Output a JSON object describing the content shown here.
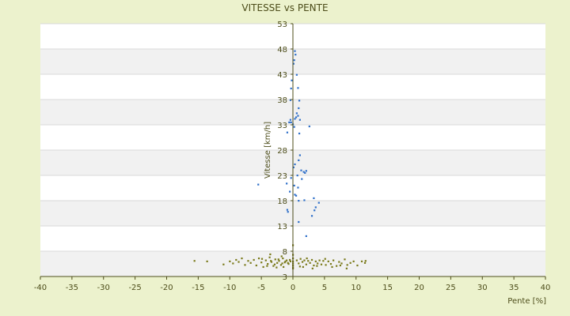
{
  "colors": {
    "background": "#ecf2cd",
    "plot_band_light": "#ffffff",
    "plot_band_dark": "#f1f1f1",
    "grid": "#d9d9d9",
    "axis": "#4d4d1a",
    "text": "#4d4d1a",
    "series_blue": "#2e6fc9",
    "series_olive": "#7a7a1a"
  },
  "chart_data": {
    "type": "scatter",
    "title": "VITESSE vs PENTE",
    "xlabel": "Pente [%]",
    "ylabel": "Vitesse [km/h]",
    "xlim": [
      -40,
      40
    ],
    "ylim": [
      3,
      53
    ],
    "x_ticks": [
      -40,
      -35,
      -30,
      -25,
      -20,
      -15,
      -10,
      -5,
      0,
      5,
      10,
      15,
      20,
      25,
      30,
      35,
      40
    ],
    "y_ticks": [
      3,
      8,
      13,
      18,
      23,
      28,
      33,
      38,
      43,
      48,
      53
    ],
    "grid": true,
    "legend": "none",
    "series": [
      {
        "color": "#2e6fc9",
        "points": [
          [
            0.3,
            47.6
          ],
          [
            0.4,
            46.9
          ],
          [
            0.2,
            45.8
          ],
          [
            0.1,
            45.1
          ],
          [
            0.6,
            42.9
          ],
          [
            -0.2,
            41.8
          ],
          [
            -0.3,
            40.2
          ],
          [
            0.8,
            40.3
          ],
          [
            1.0,
            37.8
          ],
          [
            -0.4,
            37.9
          ],
          [
            0.9,
            36.3
          ],
          [
            0.6,
            35.3
          ],
          [
            0.8,
            34.8
          ],
          [
            0.5,
            34.5
          ],
          [
            0.3,
            34.2
          ],
          [
            1.1,
            34.0
          ],
          [
            -0.4,
            34.0
          ],
          [
            -0.6,
            33.5
          ],
          [
            -0.3,
            33.5
          ],
          [
            0.2,
            32.6
          ],
          [
            0.0,
            33.1
          ],
          [
            2.6,
            32.7
          ],
          [
            -0.9,
            31.5
          ],
          [
            1.0,
            31.3
          ],
          [
            1.1,
            27.0
          ],
          [
            0.9,
            26.0
          ],
          [
            0.3,
            25.2
          ],
          [
            0.1,
            24.6
          ],
          [
            1.3,
            24.0
          ],
          [
            1.7,
            23.7
          ],
          [
            1.9,
            23.5
          ],
          [
            2.1,
            23.9
          ],
          [
            0.7,
            23.0
          ],
          [
            -0.3,
            22.5
          ],
          [
            1.4,
            22.3
          ],
          [
            0.2,
            21.0
          ],
          [
            -5.5,
            21.2
          ],
          [
            -1.0,
            21.4
          ],
          [
            0.8,
            20.6
          ],
          [
            -0.5,
            19.8
          ],
          [
            0.3,
            19.2
          ],
          [
            0.5,
            19.0
          ],
          [
            0.9,
            18.0
          ],
          [
            1.8,
            18.1
          ],
          [
            3.3,
            18.5
          ],
          [
            4.1,
            17.6
          ],
          [
            3.6,
            16.7
          ],
          [
            3.4,
            16.1
          ],
          [
            -0.9,
            16.2
          ],
          [
            -0.8,
            15.8
          ],
          [
            3.0,
            15.0
          ],
          [
            0.9,
            13.8
          ],
          [
            2.1,
            11.0
          ]
        ]
      },
      {
        "color": "#7a7a1a",
        "points": [
          [
            -15.6,
            6.1
          ],
          [
            -13.6,
            6.0
          ],
          [
            -11.0,
            5.4
          ],
          [
            -10.0,
            6.0
          ],
          [
            -9.5,
            5.6
          ],
          [
            -9.0,
            6.3
          ],
          [
            -8.6,
            5.9
          ],
          [
            -8.1,
            6.6
          ],
          [
            -7.6,
            5.3
          ],
          [
            -7.1,
            6.1
          ],
          [
            -6.7,
            5.7
          ],
          [
            -6.2,
            6.3
          ],
          [
            -5.8,
            5.2
          ],
          [
            -5.4,
            6.6
          ],
          [
            -5.0,
            5.8
          ],
          [
            -4.7,
            4.9
          ],
          [
            -4.3,
            6.2
          ],
          [
            -4.0,
            5.5
          ],
          [
            -3.7,
            6.8
          ],
          [
            -3.4,
            5.9
          ],
          [
            -3.1,
            5.1
          ],
          [
            -2.8,
            6.4
          ],
          [
            -2.5,
            5.7
          ],
          [
            -2.2,
            6.1
          ],
          [
            -1.9,
            5.3
          ],
          [
            -1.6,
            6.6
          ],
          [
            -1.3,
            5.8
          ],
          [
            -1.0,
            6.2
          ],
          [
            -0.7,
            5.5
          ],
          [
            -0.4,
            6.0
          ],
          [
            -4.9,
            6.5
          ],
          [
            -4.1,
            5.1
          ],
          [
            -3.5,
            6.1
          ],
          [
            -2.9,
            5.4
          ],
          [
            -2.3,
            6.4
          ],
          [
            -1.7,
            5.6
          ],
          [
            -1.2,
            6.0
          ],
          [
            -0.8,
            5.7
          ],
          [
            -0.5,
            6.3
          ],
          [
            -2.6,
            4.8
          ],
          [
            -1.5,
            4.9
          ],
          [
            -3.6,
            7.4
          ],
          [
            -1.8,
            7.0
          ],
          [
            0.0,
            6.6
          ],
          [
            0.0,
            6.0
          ],
          [
            0.0,
            5.6
          ],
          [
            0.0,
            5.2
          ],
          [
            0.0,
            4.8
          ],
          [
            0.0,
            4.6
          ],
          [
            0.0,
            7.3
          ],
          [
            0.0,
            9.2
          ],
          [
            0.6,
            6.2
          ],
          [
            0.9,
            5.6
          ],
          [
            1.2,
            6.5
          ],
          [
            1.5,
            5.9
          ],
          [
            1.8,
            6.2
          ],
          [
            2.1,
            5.4
          ],
          [
            2.4,
            6.1
          ],
          [
            2.7,
            5.7
          ],
          [
            3.0,
            6.3
          ],
          [
            3.3,
            5.2
          ],
          [
            3.6,
            6.0
          ],
          [
            3.9,
            5.6
          ],
          [
            4.2,
            6.2
          ],
          [
            4.5,
            5.4
          ],
          [
            4.8,
            6.1
          ],
          [
            5.2,
            5.3
          ],
          [
            5.6,
            6.0
          ],
          [
            6.0,
            5.5
          ],
          [
            6.4,
            6.2
          ],
          [
            6.9,
            5.1
          ],
          [
            7.3,
            5.9
          ],
          [
            7.7,
            5.6
          ],
          [
            8.2,
            6.4
          ],
          [
            8.6,
            5.3
          ],
          [
            9.1,
            5.7
          ],
          [
            9.6,
            6.0
          ],
          [
            10.2,
            5.2
          ],
          [
            10.9,
            6.0
          ],
          [
            11.4,
            5.7
          ],
          [
            1.1,
            5.0
          ],
          [
            1.6,
            4.9
          ],
          [
            2.2,
            6.6
          ],
          [
            3.1,
            4.6
          ],
          [
            3.8,
            5.1
          ],
          [
            5.1,
            6.5
          ],
          [
            6.2,
            4.9
          ],
          [
            7.5,
            5.2
          ],
          [
            8.5,
            4.6
          ],
          [
            11.5,
            6.1
          ]
        ]
      }
    ]
  }
}
